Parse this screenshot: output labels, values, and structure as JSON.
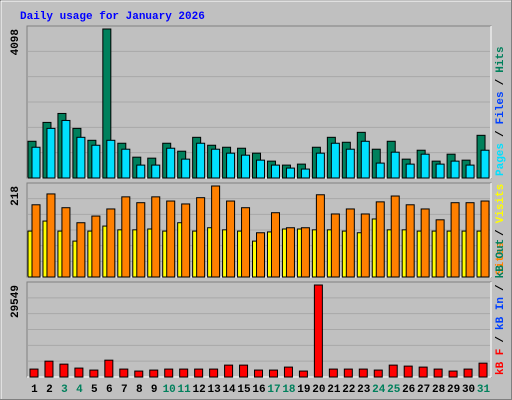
{
  "chart_data": {
    "type": "bar",
    "title": "Daily usage for January 2026",
    "categories": [
      "1",
      "2",
      "3",
      "4",
      "5",
      "6",
      "7",
      "8",
      "9",
      "10",
      "11",
      "12",
      "13",
      "14",
      "15",
      "16",
      "17",
      "18",
      "19",
      "20",
      "21",
      "22",
      "23",
      "24",
      "25",
      "26",
      "27",
      "28",
      "29",
      "30",
      "31"
    ],
    "category_colors": [
      "#000000",
      "#000000",
      "#00805c",
      "#00805c",
      "#000000",
      "#000000",
      "#000000",
      "#000000",
      "#000000",
      "#00805c",
      "#00805c",
      "#000000",
      "#000000",
      "#000000",
      "#000000",
      "#000000",
      "#00805c",
      "#00805c",
      "#000000",
      "#000000",
      "#000000",
      "#000000",
      "#000000",
      "#00805c",
      "#00805c",
      "#000000",
      "#000000",
      "#000000",
      "#000000",
      "#000000",
      "#00805c"
    ],
    "legend_separator": "/",
    "panels": [
      {
        "ylim": [
          0,
          4098
        ],
        "yticks": [
          4098
        ],
        "series": [
          {
            "name": "Hits",
            "color": "#00805c",
            "values": [
              1010,
              1529,
              1775,
              1365,
              1037,
              4098,
              956,
              573,
              546,
              956,
              737,
              1119,
              901,
              846,
              819,
              683,
              464,
              355,
              382,
              846,
              1119,
              983,
              1256,
              792,
              1010,
              519,
              764,
              464,
              655,
              491,
              1174
            ]
          },
          {
            "name": "Files",
            "color": "#0040ff"
          },
          {
            "name": "Pages",
            "color": "#00e0ff",
            "values": [
              846,
              1365,
              1583,
              1119,
              901,
              1037,
              792,
              355,
              355,
              819,
              519,
              956,
              792,
              683,
              628,
              491,
              355,
              273,
              246,
              683,
              956,
              792,
              1010,
              410,
              710,
              382,
              655,
              382,
              464,
              355,
              764
            ]
          }
        ]
      },
      {
        "ylim": [
          0,
          218
        ],
        "yticks": [
          218
        ],
        "series": [
          {
            "name": "Visits",
            "color": "#ffff00",
            "values": [
              110,
              134,
              110,
              86,
              110,
              122,
              113,
              113,
              115,
              110,
              130,
              110,
              118,
              113,
              110,
              86,
              108,
              115,
              115,
              113,
              113,
              110,
              106,
              139,
              113,
              113,
              110,
              110,
              110,
              110,
              110
            ]
          },
          {
            "name": "Sites",
            "color": "#ff8000",
            "values": [
              173,
              199,
              166,
              130,
              146,
              163,
              192,
              178,
              192,
              182,
              175,
              190,
              218,
              182,
              166,
              106,
              154,
              118,
              118,
              197,
              151,
              163,
              151,
              180,
              194,
              173,
              163,
              137,
              178,
              178,
              182
            ]
          }
        ]
      },
      {
        "ylim": [
          0,
          29549
        ],
        "yticks": [
          29549
        ],
        "series": [
          {
            "name": "kB Out",
            "color": "#00805c"
          },
          {
            "name": "kB In",
            "color": "#0040ff"
          },
          {
            "name": "kB F",
            "color": "#ff0000",
            "values": [
              2544,
              5088,
              4134,
              2862,
              2226,
              5406,
              2544,
              1908,
              2226,
              2544,
              2544,
              2544,
              2544,
              3816,
              3816,
              2226,
              2226,
              3180,
              1908,
              29549,
              2544,
              2544,
              2544,
              2226,
              3816,
              3498,
              3180,
              2544,
              1908,
              2544,
              4452
            ]
          }
        ]
      }
    ]
  }
}
